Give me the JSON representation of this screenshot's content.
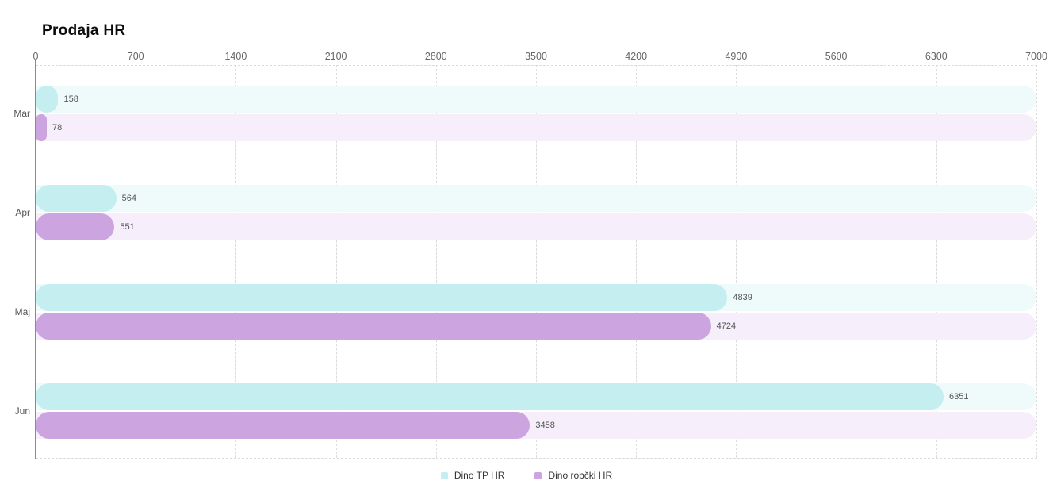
{
  "title": "Prodaja HR",
  "chart_data": {
    "type": "bar",
    "orientation": "horizontal",
    "title": "Prodaja HR",
    "categories": [
      "Mar",
      "Apr",
      "Maj",
      "Jun"
    ],
    "series": [
      {
        "name": "Dino TP HR",
        "values": [
          158,
          564,
          4839,
          6351
        ],
        "color": "#c4eef0",
        "track_color": "#effafb"
      },
      {
        "name": "Dino robčki HR",
        "values": [
          78,
          551,
          4724,
          3458
        ],
        "color": "#cba4e0",
        "track_color": "#f6eefa"
      }
    ],
    "xlabel": "",
    "ylabel": "",
    "xlim": [
      0,
      7000
    ],
    "x_ticks": [
      0,
      700,
      1400,
      2100,
      2800,
      3500,
      4200,
      4900,
      5600,
      6300,
      7000
    ],
    "grid": "dashed",
    "legend_position": "bottom-center",
    "value_labels": true
  },
  "colors": {
    "grid": "#dcdcdc",
    "axis": "#8a8a8a",
    "tick_label": "#666666",
    "category_label": "#555555",
    "value_label": "#555555",
    "legend_text": "#333333",
    "title": "#0c0c0c",
    "background": "#ffffff"
  }
}
